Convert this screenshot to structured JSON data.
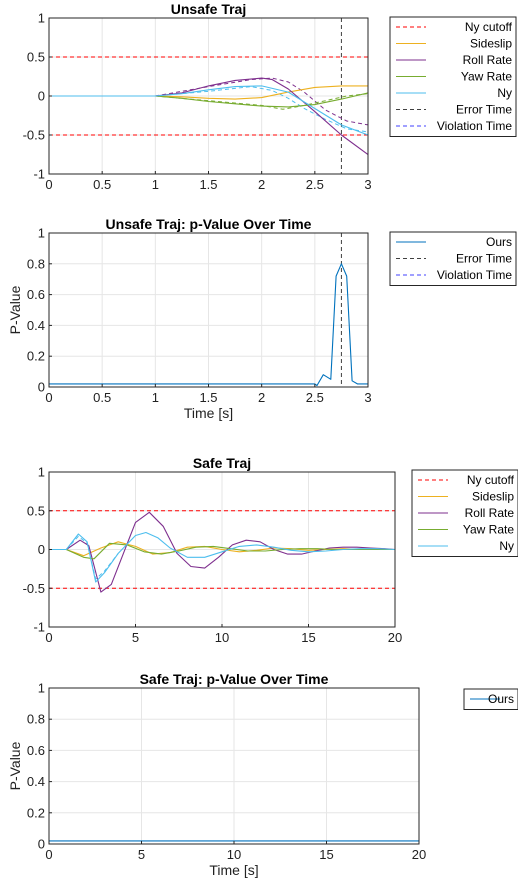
{
  "chart_data": [
    {
      "type": "line",
      "title": "Unsafe Traj",
      "xlabel": "",
      "ylabel": "",
      "xlim": [
        0,
        3
      ],
      "ylim": [
        -1,
        1
      ],
      "xticks": [
        0,
        0.5,
        1,
        1.5,
        2,
        2.5,
        3
      ],
      "xtick_labels": [
        "0",
        "0.5",
        "1",
        "1.5",
        "2",
        "2.5",
        "3"
      ],
      "yticks": [
        -1,
        -0.5,
        0,
        0.5,
        1
      ],
      "ytick_labels": [
        "-1",
        "-0.5",
        "0",
        "0.5",
        "1"
      ],
      "grid": true,
      "legend_position": "outside-right-top",
      "hlines": [
        {
          "name": "Ny cutoff",
          "y": 0.5,
          "color": "#ff0000",
          "dash": true
        },
        {
          "name": "Ny cutoff",
          "y": -0.5,
          "color": "#ff0000",
          "dash": true,
          "legend": false
        }
      ],
      "vlines": [
        {
          "name": "Error Time",
          "x": 2.75,
          "color": "#404040",
          "dash": true
        },
        {
          "name": "Violation Time",
          "x": 3.0,
          "color": "#4040ff",
          "dash": true
        }
      ],
      "series": [
        {
          "name": "Sideslip",
          "color": "#edb120",
          "x": [
            0,
            0.5,
            1,
            1.25,
            1.5,
            1.75,
            2,
            2.25,
            2.5,
            2.75,
            3
          ],
          "values": [
            0,
            0,
            0,
            -0.01,
            -0.03,
            -0.04,
            -0.02,
            0.05,
            0.11,
            0.13,
            0.13
          ]
        },
        {
          "name": "Roll Rate",
          "color": "#7e2f8e",
          "x": [
            0,
            0.5,
            1,
            1.25,
            1.5,
            1.75,
            2,
            2.1,
            2.25,
            2.5,
            2.75,
            3
          ],
          "values": [
            0,
            0,
            0,
            0.04,
            0.13,
            0.2,
            0.23,
            0.21,
            0.09,
            -0.2,
            -0.5,
            -0.75
          ]
        },
        {
          "name": "Yaw Rate",
          "color": "#77ac30",
          "x": [
            0,
            0.5,
            1,
            1.25,
            1.5,
            1.75,
            2,
            2.25,
            2.5,
            2.75,
            3
          ],
          "values": [
            0,
            0,
            0,
            -0.03,
            -0.07,
            -0.1,
            -0.13,
            -0.14,
            -0.11,
            -0.04,
            0.04
          ]
        },
        {
          "name": "Ny",
          "color": "#4dbeee",
          "x": [
            0,
            0.5,
            1,
            1.25,
            1.5,
            1.75,
            2,
            2.25,
            2.5,
            2.75,
            3
          ],
          "values": [
            0,
            0,
            0,
            0.03,
            0.08,
            0.12,
            0.13,
            0.05,
            -0.16,
            -0.37,
            -0.5
          ]
        }
      ],
      "extra_dashed_series": [
        {
          "color": "#7e2f8e",
          "x": [
            1,
            1.5,
            1.9,
            2.1,
            2.25,
            2.4,
            2.6,
            2.8,
            3
          ],
          "values": [
            0,
            0.12,
            0.21,
            0.23,
            0.18,
            0.05,
            -0.18,
            -0.32,
            -0.37
          ]
        },
        {
          "color": "#4dbeee",
          "x": [
            1,
            1.5,
            1.9,
            2.1,
            2.25,
            2.4,
            2.6,
            2.8,
            3
          ],
          "values": [
            0,
            0.06,
            0.12,
            0.07,
            -0.03,
            -0.16,
            -0.3,
            -0.42,
            -0.46
          ]
        },
        {
          "color": "#77ac30",
          "x": [
            1,
            1.5,
            2,
            2.2,
            2.4,
            2.6,
            2.8,
            3
          ],
          "values": [
            0,
            -0.06,
            -0.12,
            -0.17,
            -0.12,
            -0.06,
            0,
            0.03
          ]
        }
      ],
      "legend": [
        "Ny cutoff",
        "Sideslip",
        "Roll Rate",
        "Yaw Rate",
        "Ny",
        "Error Time",
        "Violation Time"
      ]
    },
    {
      "type": "line",
      "title": "Unsafe Traj: p-Value Over Time",
      "xlabel": "Time [s]",
      "ylabel": "P-Value",
      "xlim": [
        0,
        3
      ],
      "ylim": [
        0,
        1
      ],
      "xticks": [
        0,
        0.5,
        1,
        1.5,
        2,
        2.5,
        3
      ],
      "xtick_labels": [
        "0",
        "0.5",
        "1",
        "1.5",
        "2",
        "2.5",
        "3"
      ],
      "yticks": [
        0,
        0.2,
        0.4,
        0.6,
        0.8,
        1
      ],
      "ytick_labels": [
        "0",
        "0.2",
        "0.4",
        "0.6",
        "0.8",
        "1"
      ],
      "grid": true,
      "legend_position": "outside-right-top",
      "vlines": [
        {
          "name": "Error Time",
          "x": 2.75,
          "color": "#404040",
          "dash": true
        },
        {
          "name": "Violation Time",
          "x": 3.0,
          "color": "#4040ff",
          "dash": true
        }
      ],
      "series": [
        {
          "name": "Ours",
          "color": "#0072bd",
          "x": [
            0,
            2.5,
            2.52,
            2.58,
            2.65,
            2.7,
            2.75,
            2.8,
            2.85,
            2.9,
            3
          ],
          "values": [
            0.02,
            0.02,
            0.01,
            0.08,
            0.05,
            0.72,
            0.8,
            0.72,
            0.04,
            0.02,
            0.02
          ]
        }
      ],
      "legend": [
        "Ours",
        "Error Time",
        "Violation Time"
      ]
    },
    {
      "type": "line",
      "title": "Safe Traj",
      "xlabel": "",
      "ylabel": "",
      "xlim": [
        0,
        20
      ],
      "ylim": [
        -1,
        1
      ],
      "xticks": [
        0,
        5,
        10,
        15,
        20
      ],
      "xtick_labels": [
        "0",
        "5",
        "10",
        "15",
        "20"
      ],
      "yticks": [
        -1,
        -0.5,
        0,
        0.5,
        1
      ],
      "ytick_labels": [
        "-1",
        "-0.5",
        "0",
        "0.5",
        "1"
      ],
      "grid": true,
      "legend_position": "outside-right-top",
      "hlines": [
        {
          "name": "Ny cutoff",
          "y": 0.5,
          "color": "#ff0000",
          "dash": true
        },
        {
          "name": "Ny cutoff",
          "y": -0.5,
          "color": "#ff0000",
          "dash": true,
          "legend": false
        }
      ],
      "series": [
        {
          "name": "Sideslip",
          "color": "#edb120",
          "x": [
            0,
            1,
            2,
            3,
            4,
            5,
            6,
            7,
            8,
            9,
            10,
            11,
            12,
            13,
            14,
            15,
            16,
            17,
            18,
            19,
            20
          ],
          "values": [
            0,
            0,
            -0.08,
            0.02,
            0.1,
            0.04,
            -0.06,
            -0.04,
            0.03,
            0.04,
            0,
            -0.03,
            -0.01,
            0.02,
            0.01,
            -0.01,
            0,
            0.01,
            0,
            0,
            0
          ]
        },
        {
          "name": "Roll Rate",
          "color": "#7e2f8e",
          "x": [
            0,
            1,
            1.8,
            2.3,
            3,
            3.6,
            4.3,
            5,
            5.8,
            6.6,
            7.4,
            8.2,
            9,
            9.8,
            10.6,
            11.4,
            12.2,
            13,
            13.8,
            14.6,
            15.4,
            16.2,
            17,
            17.8,
            18.6,
            19.4,
            20
          ],
          "values": [
            0,
            0,
            0.12,
            0.05,
            -0.55,
            -0.45,
            -0.05,
            0.35,
            0.48,
            0.3,
            -0.05,
            -0.22,
            -0.24,
            -0.1,
            0.06,
            0.12,
            0.1,
            0,
            -0.06,
            -0.06,
            -0.02,
            0.02,
            0.03,
            0.03,
            0.02,
            0.01,
            0
          ]
        },
        {
          "name": "Yaw Rate",
          "color": "#77ac30",
          "x": [
            0,
            1,
            2,
            2.6,
            3.5,
            4.5,
            5.5,
            6.5,
            7.5,
            8.5,
            9.5,
            10.5,
            11.5,
            12.5,
            13.5,
            14.5,
            15.5,
            16.5,
            17.5,
            18.5,
            20
          ],
          "values": [
            0,
            0,
            -0.1,
            -0.12,
            0.08,
            0.06,
            -0.03,
            -0.06,
            -0.02,
            0.03,
            0.04,
            0.01,
            -0.02,
            -0.02,
            0,
            0.01,
            0.01,
            0,
            0,
            0,
            0
          ]
        },
        {
          "name": "Ny",
          "color": "#4dbeee",
          "x": [
            0,
            1,
            1.7,
            2.2,
            2.7,
            3.2,
            4,
            5,
            5.6,
            6.3,
            7,
            8,
            9,
            10,
            11,
            12,
            13,
            14,
            15,
            16,
            17,
            18,
            19,
            20
          ],
          "values": [
            0,
            0,
            0.2,
            0.1,
            -0.42,
            -0.3,
            -0.05,
            0.18,
            0.22,
            0.15,
            0.02,
            -0.1,
            -0.1,
            -0.03,
            0.04,
            0.06,
            0.03,
            -0.01,
            -0.03,
            -0.02,
            0,
            0.01,
            0.01,
            0
          ]
        }
      ],
      "extra_dashed_series": [
        {
          "color": "#4dbeee",
          "x": [
            1,
            1.7,
            2.2,
            2.7,
            3.2,
            4
          ],
          "values": [
            0,
            0.17,
            0.08,
            -0.38,
            -0.28,
            -0.05
          ]
        }
      ],
      "legend": [
        "Ny cutoff",
        "Sideslip",
        "Roll Rate",
        "Yaw Rate",
        "Ny"
      ]
    },
    {
      "type": "line",
      "title": "Safe Traj: p-Value Over Time",
      "xlabel": "Time [s]",
      "ylabel": "P-Value",
      "xlim": [
        0,
        20
      ],
      "ylim": [
        0,
        1
      ],
      "xticks": [
        0,
        5,
        10,
        15,
        20
      ],
      "xtick_labels": [
        "0",
        "5",
        "10",
        "15",
        "20"
      ],
      "yticks": [
        0,
        0.2,
        0.4,
        0.6,
        0.8,
        1
      ],
      "ytick_labels": [
        "0",
        "0.2",
        "0.4",
        "0.6",
        "0.8",
        "1"
      ],
      "grid": true,
      "legend_position": "outside-right-top",
      "series": [
        {
          "name": "Ours",
          "color": "#0072bd",
          "x": [
            0,
            20
          ],
          "values": [
            0.02,
            0.02
          ]
        }
      ],
      "legend": [
        "Ours"
      ]
    }
  ]
}
